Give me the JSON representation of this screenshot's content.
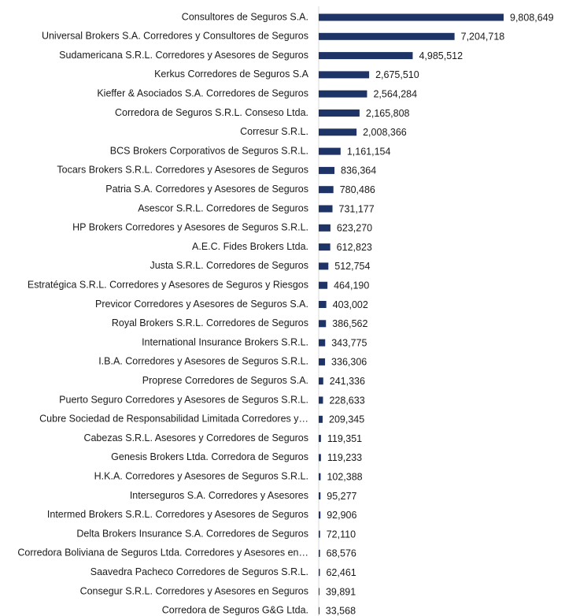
{
  "chart_data": {
    "type": "bar",
    "orientation": "horizontal",
    "color": "#1f3466",
    "categories": [
      "Consultores de Seguros S.A.",
      "Universal Brokers S.A. Corredores y Consultores de Seguros",
      "Sudamericana S.R.L. Corredores y Asesores de Seguros",
      "Kerkus Corredores de Seguros S.A",
      "Kieffer & Asociados S.A. Corredores de Seguros",
      "Corredora de Seguros S.R.L. Conseso Ltda.",
      "Corresur S.R.L.",
      "BCS Brokers Corporativos de Seguros S.R.L.",
      "Tocars Brokers S.R.L. Corredores y Asesores de Seguros",
      "Patria S.A. Corredores y Asesores de Seguros",
      "Asescor S.R.L. Corredores de Seguros",
      "HP Brokers Corredores y Asesores de Seguros S.R.L.",
      "A.E.C. Fides Brokers Ltda.",
      "Justa S.R.L. Corredores de Seguros",
      "Estratégica S.R.L. Corredores y Asesores de Seguros y Riesgos",
      "Previcor Corredores y Asesores de Seguros S.A.",
      "Royal Brokers S.R.L. Corredores de Seguros",
      "International Insurance Brokers S.R.L.",
      "I.B.A. Corredores y Asesores de Seguros S.R.L.",
      "Proprese Corredores de Seguros S.A.",
      "Puerto Seguro Corredores y Asesores de Seguros S.R.L.",
      "Cubre Sociedad de Responsabilidad Limitada Corredores y…",
      "Cabezas S.R.L. Asesores y Corredores de Seguros",
      "Genesis Brokers Ltda. Corredora de Seguros",
      "H.K.A. Corredores y Asesores de Seguros S.R.L.",
      "Interseguros S.A. Corredores y Asesores",
      "Intermed Brokers S.R.L. Corredores y Asesores de Seguros",
      "Delta Brokers Insurance S.A. Corredores de Seguros",
      "Corredora Boliviana de Seguros Ltda. Corredores y Asesores en…",
      "Saavedra Pacheco Corredores de Seguros S.R.L.",
      "Consegur S.R.L. Corredores y Asesores en Seguros",
      "Corredora de Seguros G&G Ltda."
    ],
    "values": [
      9808649,
      7204718,
      4985512,
      2675510,
      2564284,
      2165808,
      2008366,
      1161154,
      836364,
      780486,
      731177,
      623270,
      612823,
      512754,
      464190,
      403002,
      386562,
      343775,
      336306,
      241336,
      228633,
      209345,
      119351,
      119233,
      102388,
      95277,
      92906,
      72110,
      68576,
      62461,
      39891,
      33568
    ],
    "value_labels": [
      "9,808,649",
      "7,204,718",
      "4,985,512",
      "2,675,510",
      "2,564,284",
      "2,165,808",
      "2,008,366",
      "1,161,154",
      "836,364",
      "780,486",
      "731,177",
      "623,270",
      "612,823",
      "512,754",
      "464,190",
      "403,002",
      "386,562",
      "343,775",
      "336,306",
      "241,336",
      "228,633",
      "209,345",
      "119,351",
      "119,233",
      "102,388",
      "95,277",
      "92,906",
      "72,110",
      "68,576",
      "62,461",
      "39,891",
      "33,568"
    ],
    "xlim": [
      0,
      12500000
    ]
  }
}
